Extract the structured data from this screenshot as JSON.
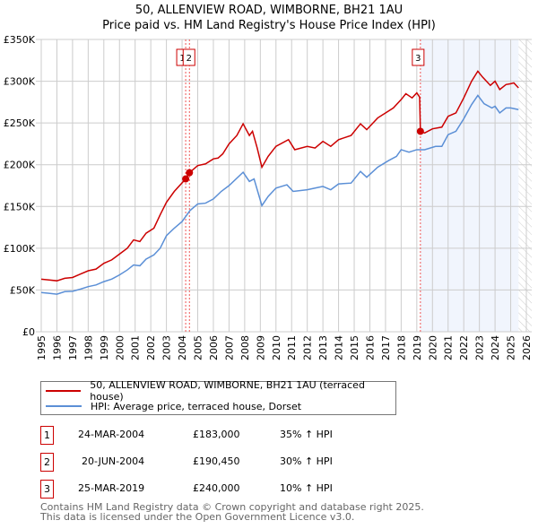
{
  "chart_data": {
    "type": "line",
    "title": "50, ALLENVIEW ROAD, WIMBORNE, BH21 1AU",
    "subtitle": "Price paid vs. HM Land Registry's House Price Index (HPI)",
    "xlim": [
      1995,
      2026
    ],
    "ylim": [
      0,
      350000
    ],
    "x_ticks": [
      "1995",
      "1996",
      "1997",
      "1998",
      "1999",
      "2000",
      "2001",
      "2002",
      "2003",
      "2004",
      "2005",
      "2006",
      "2007",
      "2008",
      "2009",
      "2010",
      "2011",
      "2012",
      "2013",
      "2014",
      "2015",
      "2016",
      "2017",
      "2018",
      "2019",
      "2020",
      "2021",
      "2022",
      "2023",
      "2024",
      "2025",
      "2026"
    ],
    "y_ticks": [
      {
        "v": 0,
        "label": "£0"
      },
      {
        "v": 50000,
        "label": "£50K"
      },
      {
        "v": 100000,
        "label": "£100K"
      },
      {
        "v": 150000,
        "label": "£150K"
      },
      {
        "v": 200000,
        "label": "£200K"
      },
      {
        "v": 250000,
        "label": "£250K"
      },
      {
        "v": 300000,
        "label": "£300K"
      },
      {
        "v": 350000,
        "label": "£350K"
      }
    ],
    "grid": true,
    "shaded_region": [
      2019.23,
      2025.5
    ],
    "hatched_from": 2025.5,
    "series": [
      {
        "name": "50, ALLENVIEW ROAD, WIMBORNE, BH21 1AU (terraced house)",
        "color": "#cc0000",
        "x": [
          1995,
          1995.5,
          1996,
          1996.5,
          1997,
          1997.5,
          1998,
          1998.5,
          1999,
          1999.5,
          2000,
          2000.5,
          2000.9,
          2001.3,
          2001.7,
          2002.2,
          2002.6,
          2003,
          2003.5,
          2004.23,
          2004.47,
          2005,
          2005.5,
          2006,
          2006.3,
          2006.6,
          2007,
          2007.5,
          2007.9,
          2008.3,
          2008.5,
          2008.8,
          2009.1,
          2009.5,
          2010,
          2010.8,
          2011.2,
          2012,
          2012.5,
          2013,
          2013.5,
          2014,
          2014.8,
          2015.4,
          2015.8,
          2016.5,
          2017,
          2017.5,
          2018,
          2018.3,
          2018.7,
          2019.0,
          2019.18,
          2019.23,
          2019.5,
          2020,
          2020.6,
          2021,
          2021.5,
          2022,
          2022.5,
          2022.9,
          2023.2,
          2023.7,
          2024,
          2024.3,
          2024.7,
          2025,
          2025.2,
          2025.5
        ],
        "y": [
          63000,
          62000,
          61000,
          64000,
          65000,
          69000,
          73000,
          75000,
          82000,
          86000,
          93000,
          100000,
          110000,
          108000,
          118000,
          124000,
          140000,
          155000,
          168000,
          183000,
          190450,
          199000,
          201000,
          207000,
          208000,
          213000,
          225000,
          235000,
          249000,
          235000,
          240000,
          220000,
          197000,
          210000,
          222000,
          230000,
          218000,
          222000,
          220000,
          228000,
          222000,
          230000,
          235000,
          249000,
          242000,
          256000,
          262000,
          268000,
          278000,
          285000,
          280000,
          286000,
          281000,
          240000,
          238000,
          243000,
          245000,
          258000,
          262000,
          280000,
          300000,
          312000,
          305000,
          295000,
          300000,
          290000,
          296000,
          297000,
          298000,
          292000
        ]
      },
      {
        "name": "HPI: Average price, terraced house, Dorset",
        "color": "#5b8fd6",
        "x": [
          1995,
          1995.5,
          1996,
          1996.5,
          1997,
          1997.5,
          1998,
          1998.5,
          1999,
          1999.5,
          2000,
          2000.5,
          2000.9,
          2001.3,
          2001.7,
          2002.2,
          2002.6,
          2003,
          2003.5,
          2004,
          2004.5,
          2005,
          2005.5,
          2006,
          2006.5,
          2007,
          2007.9,
          2008.3,
          2008.6,
          2009.1,
          2009.5,
          2010,
          2010.7,
          2011.1,
          2012,
          2012.5,
          2013,
          2013.5,
          2014,
          2014.8,
          2015.4,
          2015.8,
          2016.5,
          2017.2,
          2017.7,
          2018,
          2018.5,
          2019,
          2019.5,
          2020.2,
          2020.6,
          2021,
          2021.5,
          2022,
          2022.5,
          2022.9,
          2023.3,
          2023.8,
          2024,
          2024.3,
          2024.7,
          2025,
          2025.5
        ],
        "y": [
          47000,
          46000,
          45000,
          48000,
          48500,
          51000,
          54000,
          56000,
          60000,
          63000,
          68000,
          74000,
          80000,
          79000,
          87000,
          92000,
          100000,
          115000,
          124000,
          132000,
          145000,
          153000,
          154000,
          159000,
          168000,
          175000,
          191000,
          180000,
          183000,
          151000,
          162000,
          172000,
          176000,
          168000,
          170000,
          172000,
          174000,
          170000,
          177000,
          178000,
          192000,
          185000,
          197000,
          205000,
          210000,
          218000,
          215000,
          218000,
          218000,
          222000,
          222000,
          236000,
          240000,
          255000,
          272000,
          283000,
          273000,
          268000,
          270000,
          262000,
          268000,
          268000,
          266000
        ]
      }
    ],
    "transactions": [
      {
        "num": "1",
        "date": "24-MAR-2004",
        "x": 2004.23,
        "price": "£183,000",
        "value": 183000,
        "hpi": "35% ↑ HPI"
      },
      {
        "num": "2",
        "date": "20-JUN-2004",
        "x": 2004.47,
        "price": "£190,450",
        "value": 190450,
        "hpi": "30% ↑ HPI"
      },
      {
        "num": "3",
        "date": "25-MAR-2019",
        "x": 2019.23,
        "price": "£240,000",
        "value": 240000,
        "hpi": "10% ↑ HPI"
      }
    ]
  },
  "footer": {
    "line1": "Contains HM Land Registry data © Crown copyright and database right 2025.",
    "line2": "This data is licensed under the Open Government Licence v3.0."
  }
}
